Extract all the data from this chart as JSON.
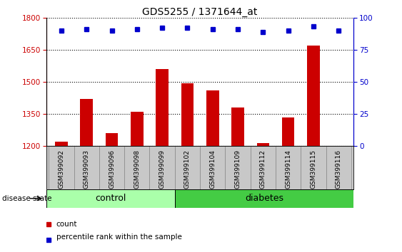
{
  "title": "GDS5255 / 1371644_at",
  "categories": [
    "GSM399092",
    "GSM399093",
    "GSM399096",
    "GSM399098",
    "GSM399099",
    "GSM399102",
    "GSM399104",
    "GSM399109",
    "GSM399112",
    "GSM399114",
    "GSM399115",
    "GSM399116"
  ],
  "bar_values": [
    1220,
    1420,
    1260,
    1360,
    1560,
    1495,
    1460,
    1380,
    1215,
    1335,
    1670,
    1195
  ],
  "percentile_values": [
    90,
    91,
    90,
    91,
    92,
    92,
    91,
    91,
    89,
    90,
    93,
    90
  ],
  "bar_color": "#cc0000",
  "dot_color": "#0000cc",
  "ylim_left": [
    1200,
    1800
  ],
  "ylim_right": [
    0,
    100
  ],
  "yticks_left": [
    1200,
    1350,
    1500,
    1650,
    1800
  ],
  "yticks_right": [
    0,
    25,
    50,
    75,
    100
  ],
  "n_control": 5,
  "n_diabetes": 7,
  "group_label_control": "control",
  "group_label_diabetes": "diabetes",
  "group_color_control": "#aaffaa",
  "group_color_diabetes": "#44cc44",
  "disease_state_label": "disease state",
  "legend_count": "count",
  "legend_percentile": "percentile rank within the sample",
  "bar_width": 0.5,
  "background_color": "#ffffff",
  "tick_label_area_color": "#c8c8c8",
  "tick_label_border_color": "#888888"
}
